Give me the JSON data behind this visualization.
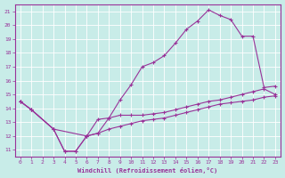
{
  "bg_color": "#c8ece8",
  "line_color": "#993399",
  "xlabel": "Windchill (Refroidissement éolien,°C)",
  "xlim": [
    -0.5,
    23.5
  ],
  "ylim": [
    10.5,
    21.5
  ],
  "xticks": [
    0,
    1,
    2,
    3,
    4,
    5,
    6,
    7,
    8,
    9,
    10,
    11,
    12,
    13,
    14,
    15,
    16,
    17,
    18,
    19,
    20,
    21,
    22,
    23
  ],
  "yticks": [
    11,
    12,
    13,
    14,
    15,
    16,
    17,
    18,
    19,
    20,
    21
  ],
  "curve1_x": [
    0,
    1,
    3,
    4,
    5,
    6,
    7,
    8,
    9,
    10,
    11,
    12,
    13,
    14,
    15,
    16,
    17,
    18,
    19,
    20,
    21,
    22,
    23
  ],
  "curve1_y": [
    14.5,
    13.9,
    12.5,
    10.9,
    10.9,
    12.0,
    12.2,
    13.3,
    14.6,
    15.7,
    17.0,
    17.3,
    17.8,
    18.7,
    19.7,
    20.3,
    21.1,
    20.7,
    20.4,
    19.2,
    19.2,
    15.5,
    15.6
  ],
  "curve2_x": [
    0,
    1,
    3,
    6,
    7,
    8,
    9,
    10,
    11,
    12,
    13,
    14,
    15,
    16,
    17,
    18,
    19,
    20,
    21,
    22,
    23
  ],
  "curve2_y": [
    14.5,
    13.9,
    12.5,
    12.0,
    13.2,
    13.3,
    13.5,
    13.5,
    13.5,
    13.6,
    13.7,
    13.9,
    14.1,
    14.3,
    14.5,
    14.6,
    14.8,
    15.0,
    15.2,
    15.4,
    15.0
  ],
  "curve3_x": [
    0,
    1,
    3,
    4,
    5,
    6,
    7,
    8,
    9,
    10,
    11,
    12,
    13,
    14,
    15,
    16,
    17,
    18,
    19,
    20,
    21,
    22,
    23
  ],
  "curve3_y": [
    14.5,
    13.9,
    12.5,
    10.9,
    10.9,
    12.0,
    12.2,
    12.5,
    12.7,
    12.9,
    13.1,
    13.2,
    13.3,
    13.5,
    13.7,
    13.9,
    14.1,
    14.3,
    14.4,
    14.5,
    14.6,
    14.8,
    14.9
  ]
}
